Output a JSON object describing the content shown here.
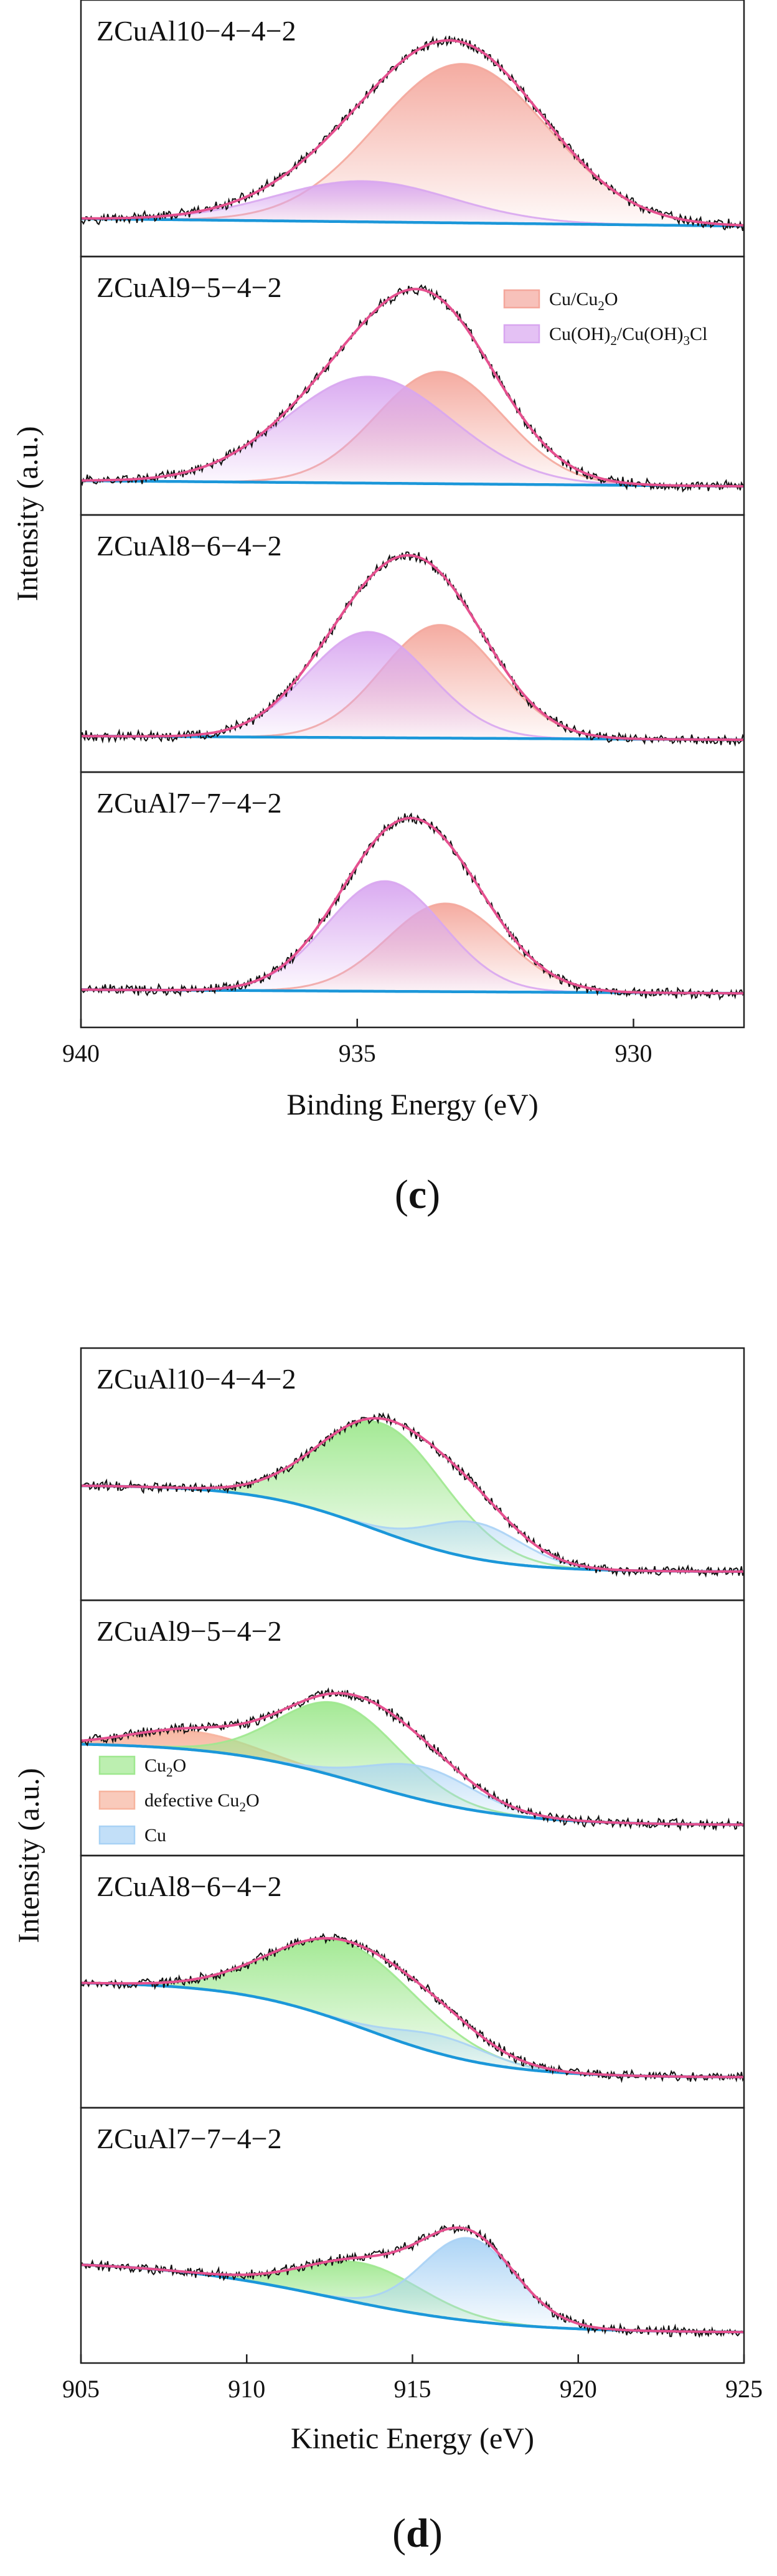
{
  "chart_data": [
    {
      "type": "area",
      "caption": "c",
      "xlabel": "Binding Energy (eV)",
      "ylabel": "Intensity (a.u.)",
      "xlim": [
        940,
        928
      ],
      "xticks": [
        940,
        935,
        930
      ],
      "legend": {
        "position": "top-right",
        "entries": [
          {
            "label": "Cu/Cu",
            "sub": "2",
            "tail": "O",
            "color": "#f4a79c"
          },
          {
            "label": "Cu(OH)",
            "sub": "2",
            "tail": "/Cu(OH)",
            "sub2": "3",
            "tail2": "Cl",
            "color": "#d8a6f0"
          }
        ]
      },
      "colors": {
        "envelope": "#e5508f",
        "background": "#1b97d9",
        "raw": "#111111"
      },
      "panels": [
        {
          "title": "ZCuAl10−4−4−2",
          "baseline": [
            0.07,
            0.03
          ],
          "components": [
            {
              "name": "Cu/Cu2O",
              "center": 933.1,
              "height": 0.86,
              "width": 1.55,
              "color": "#f4a79c"
            },
            {
              "name": "Cu(OH)2/Cu(OH)3Cl",
              "center": 934.9,
              "height": 0.22,
              "width": 1.6,
              "color": "#d8a6f0"
            }
          ]
        },
        {
          "title": "ZCuAl9−5−4−2",
          "baseline": [
            0.05,
            0.02
          ],
          "components": [
            {
              "name": "Cu/Cu2O",
              "center": 933.5,
              "height": 0.6,
              "width": 1.15,
              "color": "#f4a79c"
            },
            {
              "name": "Cu(OH)2/Cu(OH)3Cl",
              "center": 934.8,
              "height": 0.57,
              "width": 1.5,
              "color": "#d8a6f0"
            }
          ]
        },
        {
          "title": "ZCuAl8−6−4−2",
          "baseline": [
            0.06,
            0.04
          ],
          "components": [
            {
              "name": "Cu/Cu2O",
              "center": 933.5,
              "height": 0.61,
              "width": 1.05,
              "color": "#f4a79c"
            },
            {
              "name": "Cu(OH)2/Cu(OH)3Cl",
              "center": 934.8,
              "height": 0.57,
              "width": 1.1,
              "color": "#d8a6f0"
            }
          ]
        },
        {
          "title": "ZCuAl7−7−4−2",
          "baseline": [
            0.07,
            0.05
          ],
          "components": [
            {
              "name": "Cu/Cu2O",
              "center": 933.4,
              "height": 0.48,
              "width": 1.05,
              "color": "#f4a79c"
            },
            {
              "name": "Cu(OH)2/Cu(OH)3Cl",
              "center": 934.5,
              "height": 0.6,
              "width": 1.05,
              "color": "#d8a6f0"
            }
          ]
        }
      ]
    },
    {
      "type": "area",
      "caption": "d",
      "xlabel": "Kinetic Energy (eV)",
      "ylabel": "Intensity (a.u.)",
      "xlim": [
        905,
        925
      ],
      "xticks": [
        905,
        910,
        915,
        920,
        925
      ],
      "legend": {
        "position": "left",
        "entries": [
          {
            "label": "Cu",
            "sub": "2",
            "tail": "O",
            "color": "#9fe88f"
          },
          {
            "label": "defective Cu",
            "sub": "2",
            "tail": "O",
            "color": "#f7b49e"
          },
          {
            "label": "Cu",
            "sub": "",
            "tail": "",
            "color": "#a8d2f5"
          }
        ]
      },
      "colors": {
        "envelope": "#e5508f",
        "background": "#1b97d9",
        "raw": "#111111"
      },
      "panels": [
        {
          "title": "ZCuAl10−4−4−2",
          "background": {
            "left": 0.5,
            "right": 0.02,
            "step": 913.8,
            "width": 1.8
          },
          "components": [
            {
              "name": "Cu2O",
              "center": 914.1,
              "height": 0.6,
              "width": 1.9,
              "color": "#9fe88f"
            },
            {
              "name": "Cu",
              "center": 916.9,
              "height": 0.2,
              "width": 1.4,
              "color": "#a8d2f5"
            }
          ]
        },
        {
          "title": "ZCuAl9−5−4−2",
          "background": {
            "left": 0.48,
            "right": 0.03,
            "step": 913.5,
            "width": 2.2
          },
          "components": [
            {
              "name": "defective Cu2O",
              "center": 908.3,
              "height": 0.1,
              "width": 1.8,
              "color": "#f7b49e"
            },
            {
              "name": "Cu2O",
              "center": 912.8,
              "height": 0.4,
              "width": 1.8,
              "color": "#9fe88f"
            },
            {
              "name": "Cu",
              "center": 915.3,
              "height": 0.18,
              "width": 1.6,
              "color": "#a8d2f5"
            }
          ]
        },
        {
          "title": "ZCuAl8−6−4−2",
          "background": {
            "left": 0.56,
            "right": 0.03,
            "step": 913.6,
            "width": 2.0
          },
          "components": [
            {
              "name": "Cu2O",
              "center": 913.0,
              "height": 0.44,
              "width": 2.2,
              "color": "#9fe88f"
            },
            {
              "name": "Cu",
              "center": 915.9,
              "height": 0.1,
              "width": 1.4,
              "color": "#a8d2f5"
            }
          ]
        },
        {
          "title": "ZCuAl7−7−4−2",
          "background": {
            "left": 0.42,
            "right": 0.03,
            "step": 912.5,
            "width": 2.6
          },
          "components": [
            {
              "name": "Cu2O",
              "center": 913.5,
              "height": 0.22,
              "width": 1.8,
              "color": "#9fe88f"
            },
            {
              "name": "Cu",
              "center": 916.7,
              "height": 0.45,
              "width": 1.4,
              "color": "#a8d2f5"
            }
          ]
        }
      ]
    }
  ]
}
